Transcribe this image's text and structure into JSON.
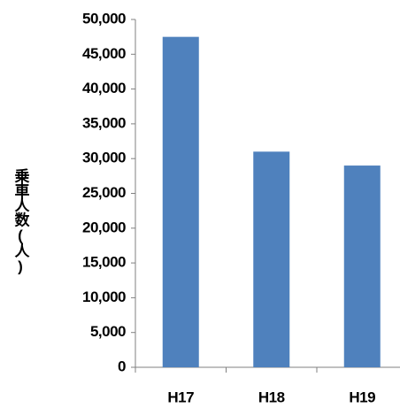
{
  "chart_data": {
    "type": "bar",
    "y_label": "乗車人数(人)",
    "categories": [
      "H17",
      "H18",
      "H19"
    ],
    "values": [
      47500,
      31000,
      29000
    ],
    "color": "#4f81bd",
    "ylim": [
      0,
      50000
    ],
    "yticks": [
      0,
      {
        "value": 5000,
        "label": "5,000"
      },
      {
        "value": 10000,
        "label": "10,000"
      },
      {
        "value": 15000,
        "label": "15,000"
      },
      {
        "value": 20000,
        "label": "20,000"
      },
      {
        "value": 25000,
        "label": "25,000"
      },
      {
        "value": 30000,
        "label": "30,000"
      },
      {
        "value": 35000,
        "label": "35,000"
      },
      {
        "value": 40000,
        "label": "40,000"
      },
      {
        "value": 45000,
        "label": "45,000"
      },
      {
        "value": 50000,
        "label": "50,000"
      }
    ],
    "grid": false
  }
}
